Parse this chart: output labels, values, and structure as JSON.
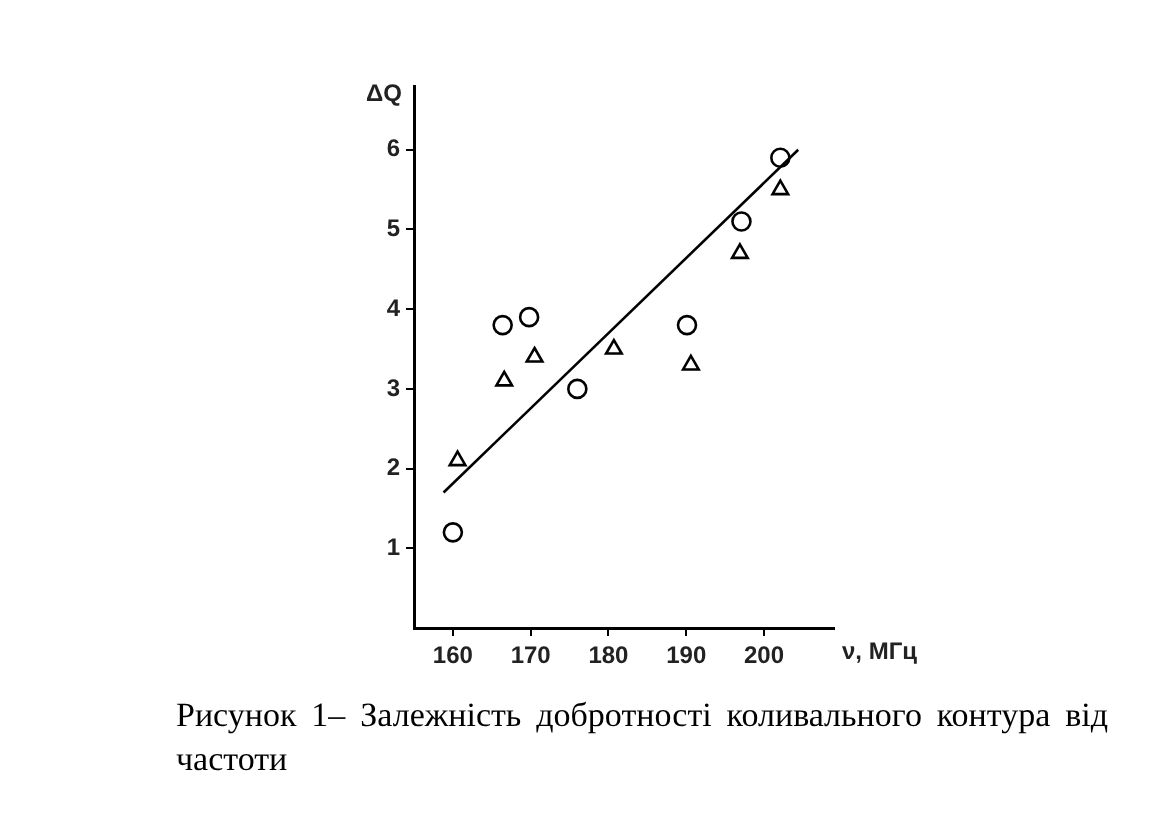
{
  "chart_data": {
    "type": "scatter",
    "xlabel": "ν, МГц",
    "ylabel": "ΔQ",
    "xlim": [
      155,
      209
    ],
    "ylim": [
      0,
      6.8
    ],
    "xticks": [
      160,
      170,
      180,
      190,
      200
    ],
    "yticks": [
      1,
      2,
      3,
      4,
      5,
      6
    ],
    "grid": false,
    "legend": false,
    "series": [
      {
        "marker": "circle",
        "color": "#000000",
        "x": [
          160,
          166.4,
          169.8,
          176,
          190.1,
          197.1,
          202.1
        ],
        "values": [
          1.2,
          3.8,
          3.9,
          3.0,
          3.8,
          5.1,
          5.9
        ]
      },
      {
        "marker": "triangle",
        "color": "#000000",
        "x": [
          160.6,
          166.6,
          170.5,
          180.7,
          190.6,
          196.9,
          202.1
        ],
        "values": [
          2.1,
          3.1,
          3.4,
          3.5,
          3.3,
          4.7,
          5.5
        ]
      },
      {
        "type": "line",
        "marker": "none",
        "color": "#000000",
        "x": [
          158.8,
          204.4
        ],
        "values": [
          1.7,
          6.0
        ]
      }
    ],
    "annotations": [
      "Рисунок 1– Залежність добротності коливального контура від частоти"
    ]
  }
}
